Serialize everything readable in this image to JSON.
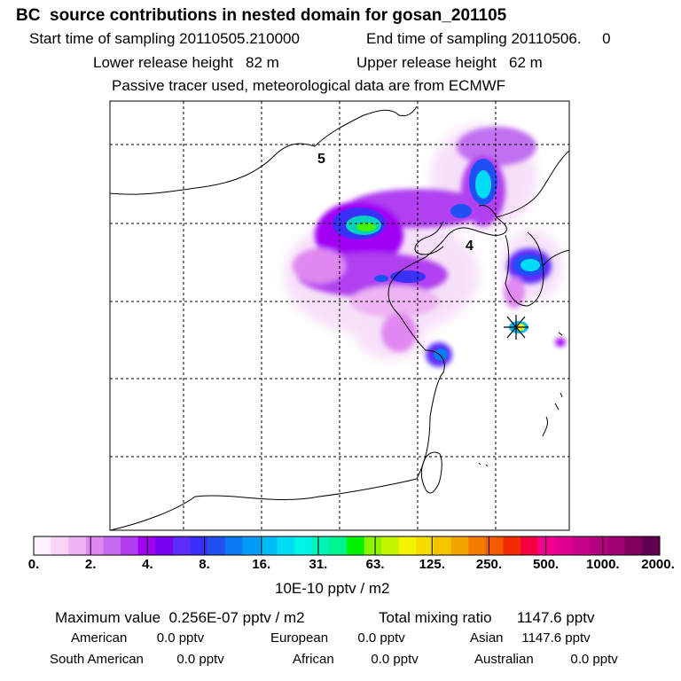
{
  "header": {
    "title": "BC  source contributions in nested domain for gosan_201105",
    "start_label": "Start time of sampling 20110505.210000",
    "end_label": "End time of sampling 20110506.     0",
    "lower_label": "Lower release height   82 m",
    "upper_label": "Upper release height   62 m",
    "tracer_note": "Passive tracer used, meteorological data are from ECMWF"
  },
  "map": {
    "grid_labels": [
      "5",
      "4"
    ],
    "receptor_marker": "star-receptor"
  },
  "colorbar": {
    "colors": [
      "#fff0ff",
      "#f8d4f8",
      "#eeb4f4",
      "#e088f0",
      "#c46bf0",
      "#b23df0",
      "#a000f4",
      "#7a00f4",
      "#5c2df8",
      "#3a30f8",
      "#2050f4",
      "#0a7af4",
      "#009cf4",
      "#00bcf4",
      "#00dcf4",
      "#00f4e8",
      "#00f4b8",
      "#00f48c",
      "#00f400",
      "#8cf400",
      "#c4f400",
      "#f4f400",
      "#f4dc00",
      "#f4c400",
      "#f4a400",
      "#f47a00",
      "#f45a00",
      "#f42a00",
      "#f40040",
      "#f40090",
      "#e00090",
      "#c80088",
      "#b40080",
      "#a00070",
      "#800060",
      "#600050"
    ],
    "tick_labels": [
      "0.",
      "2.",
      "4.",
      "8.",
      "16.",
      "31.",
      "63.",
      "125.",
      "250.",
      "500.",
      "1000.",
      "2000."
    ],
    "unit_label": "10E-10 pptv / m2"
  },
  "footer": {
    "max_value": "Maximum value  0.256E-07 pptv / m2",
    "total_mixing": "Total mixing ratio      1147.6 pptv",
    "american": "American        0.0 pptv",
    "european": "European        0.0 pptv",
    "asian": "Asian     1147.6 pptv",
    "south_american": "South American         0.0 pptv",
    "african": "African          0.0 pptv",
    "australian": "Australian          0.0 pptv"
  }
}
